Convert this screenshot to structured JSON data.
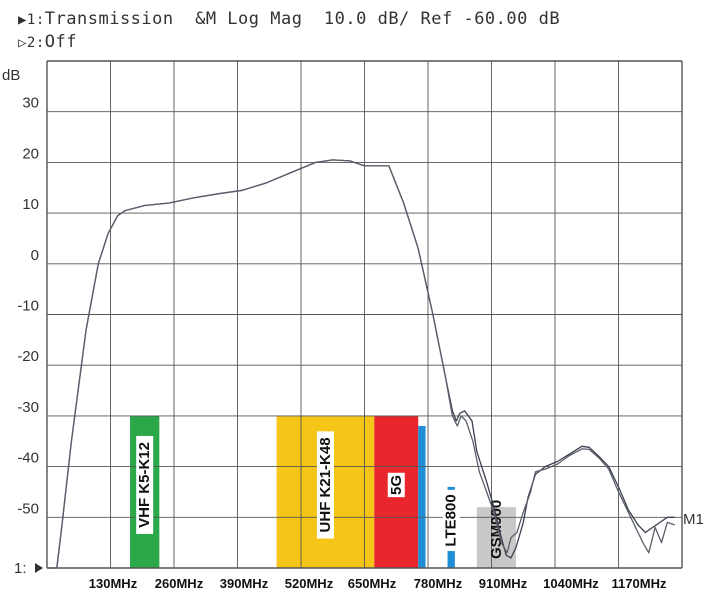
{
  "header": {
    "trace1_marker": "▶1:",
    "trace1_text": "Transmission  &M Log Mag  10.0 dB/ Ref -60.00 dB",
    "trace2_marker": "▷2:",
    "trace2_text": "Off"
  },
  "chart_data": {
    "type": "line",
    "ylabel": "dB",
    "ylim": [
      -60,
      40
    ],
    "y_ticks": [
      "30",
      "20",
      "10",
      "0",
      "-10",
      "-20",
      "-30",
      "-40",
      "-50"
    ],
    "ref_label": "1:",
    "x_ticks": [
      "130MHz",
      "260MHz",
      "390MHz",
      "520MHz",
      "650MHz",
      "780MHz",
      "910MHz",
      "1040MHz",
      "1170MHz"
    ],
    "xlim": [
      0,
      1300
    ],
    "marker_label": "M1",
    "grid": true,
    "bands": [
      {
        "label": "VHF K5-K12",
        "from": 170,
        "to": 230,
        "top": -30,
        "color": "#2aa84a"
      },
      {
        "label": "UHF K21-K48",
        "from": 470,
        "to": 670,
        "top": -30,
        "color": "#f5c518"
      },
      {
        "label": "5G",
        "from": 670,
        "to": 760,
        "top": -30,
        "color": "#e8262c"
      },
      {
        "label": "",
        "from": 760,
        "to": 775,
        "top": -32,
        "color": "#1e8fd6"
      },
      {
        "label": "LTE800",
        "from": 820,
        "to": 835,
        "top": -44,
        "color": "#1e8fd6"
      },
      {
        "label": "GSM900",
        "from": 880,
        "to": 960,
        "top": -48,
        "color": "#c8c8c8"
      }
    ],
    "series": [
      {
        "points": [
          [
            0,
            -60
          ],
          [
            10,
            -60
          ],
          [
            20,
            -60
          ],
          [
            30,
            -52
          ],
          [
            50,
            -35
          ],
          [
            80,
            -13
          ],
          [
            105,
            0
          ],
          [
            125,
            6
          ],
          [
            145,
            9.5
          ],
          [
            160,
            10.5
          ],
          [
            200,
            11.5
          ],
          [
            250,
            12
          ],
          [
            300,
            13
          ],
          [
            350,
            13.8
          ],
          [
            400,
            14.5
          ],
          [
            450,
            16
          ],
          [
            500,
            18
          ],
          [
            550,
            20
          ],
          [
            585,
            20.5
          ],
          [
            620,
            20.3
          ],
          [
            650,
            19.3
          ],
          [
            700,
            19.3
          ],
          [
            730,
            12
          ],
          [
            760,
            3
          ],
          [
            790,
            -10
          ],
          [
            815,
            -22
          ],
          [
            830,
            -29
          ],
          [
            838,
            -31
          ],
          [
            845,
            -29.5
          ],
          [
            855,
            -29
          ],
          [
            870,
            -31
          ],
          [
            880,
            -37
          ],
          [
            900,
            -43
          ],
          [
            915,
            -48
          ],
          [
            930,
            -54
          ],
          [
            940,
            -57.5
          ],
          [
            950,
            -58
          ],
          [
            960,
            -56
          ],
          [
            975,
            -51
          ],
          [
            985,
            -46
          ],
          [
            1000,
            -41.5
          ],
          [
            1020,
            -40
          ],
          [
            1045,
            -39
          ],
          [
            1070,
            -37.5
          ],
          [
            1095,
            -36
          ],
          [
            1110,
            -36.2
          ],
          [
            1130,
            -38
          ],
          [
            1150,
            -40
          ],
          [
            1170,
            -44
          ],
          [
            1190,
            -48.5
          ],
          [
            1210,
            -51.5
          ],
          [
            1225,
            -53
          ],
          [
            1240,
            -52
          ],
          [
            1255,
            -51
          ],
          [
            1270,
            -50
          ],
          [
            1285,
            -50
          ]
        ]
      },
      {
        "points": [
          [
            0,
            -60
          ],
          [
            10,
            -60
          ],
          [
            20,
            -60
          ],
          [
            30,
            -52
          ],
          [
            50,
            -35
          ],
          [
            80,
            -13
          ],
          [
            105,
            0
          ],
          [
            125,
            6
          ],
          [
            145,
            9.5
          ],
          [
            160,
            10.5
          ],
          [
            200,
            11.5
          ],
          [
            250,
            12
          ],
          [
            300,
            13
          ],
          [
            350,
            13.8
          ],
          [
            400,
            14.5
          ],
          [
            450,
            16
          ],
          [
            500,
            18
          ],
          [
            550,
            20
          ],
          [
            585,
            20.5
          ],
          [
            620,
            20.3
          ],
          [
            650,
            19.3
          ],
          [
            700,
            19.3
          ],
          [
            730,
            12
          ],
          [
            760,
            3
          ],
          [
            790,
            -10
          ],
          [
            815,
            -22
          ],
          [
            830,
            -30
          ],
          [
            840,
            -32
          ],
          [
            848,
            -30
          ],
          [
            858,
            -31
          ],
          [
            872,
            -35
          ],
          [
            885,
            -41
          ],
          [
            900,
            -45
          ],
          [
            915,
            -49
          ],
          [
            930,
            -55
          ],
          [
            942,
            -57
          ],
          [
            950,
            -54
          ],
          [
            962,
            -53
          ],
          [
            975,
            -49
          ],
          [
            990,
            -45
          ],
          [
            1000,
            -41
          ],
          [
            1020,
            -40.5
          ],
          [
            1045,
            -39.5
          ],
          [
            1070,
            -37.8
          ],
          [
            1095,
            -36.5
          ],
          [
            1110,
            -36.6
          ],
          [
            1130,
            -38.3
          ],
          [
            1150,
            -40.5
          ],
          [
            1170,
            -45
          ],
          [
            1190,
            -49
          ],
          [
            1210,
            -53
          ],
          [
            1220,
            -55
          ],
          [
            1232,
            -57
          ],
          [
            1245,
            -52
          ],
          [
            1258,
            -55
          ],
          [
            1270,
            -51
          ],
          [
            1285,
            -51.5
          ]
        ]
      }
    ]
  }
}
